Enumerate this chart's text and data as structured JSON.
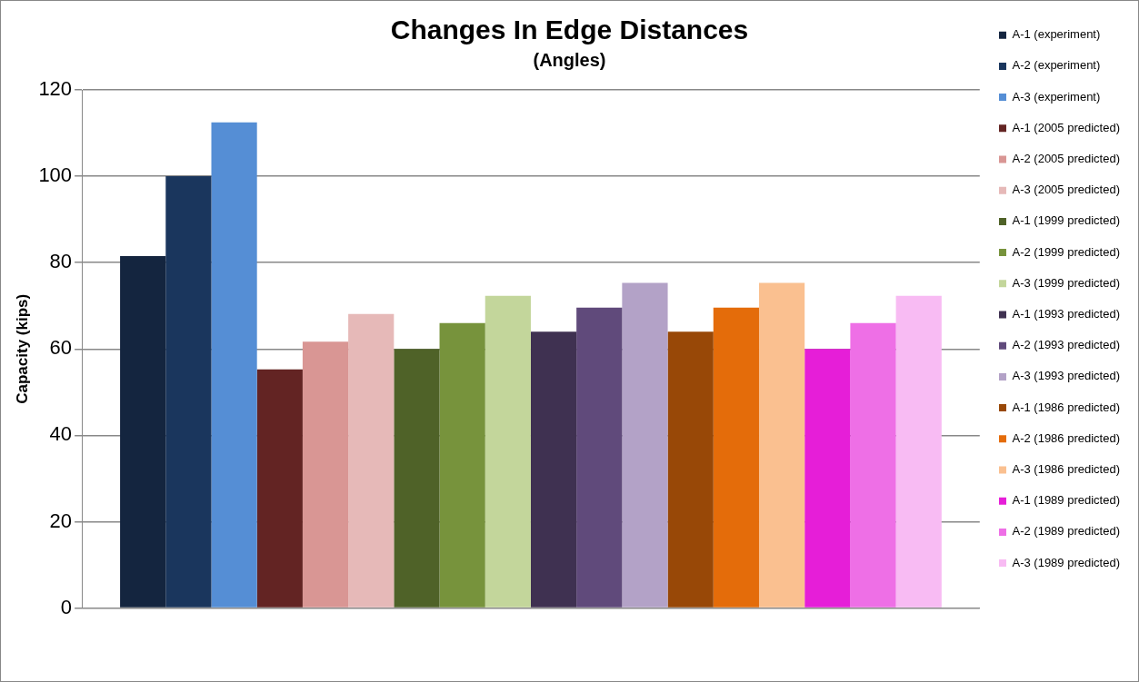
{
  "chart_data": {
    "type": "bar",
    "title": "Changes In Edge Distances",
    "subtitle": "(Angles)",
    "ylabel": "Capacity (kips)",
    "categories": [
      null
    ],
    "series": [
      {
        "name": "A-1 (experiment)",
        "color": "#14253f",
        "values": [
          81.5
        ]
      },
      {
        "name": "A-2 (experiment)",
        "color": "#1a365d",
        "values": [
          100
        ]
      },
      {
        "name": "A-3 (experiment)",
        "color": "#558ed5",
        "values": [
          112.5
        ]
      },
      {
        "name": "A-1 (2005 predicted)",
        "color": "#632423",
        "values": [
          55.3
        ]
      },
      {
        "name": "A-2 (2005 predicted)",
        "color": "#d99694",
        "values": [
          61.7
        ]
      },
      {
        "name": "A-3 (2005 predicted)",
        "color": "#e6b9b8",
        "values": [
          68.1
        ]
      },
      {
        "name": "A-1 (1999 predicted)",
        "color": "#4f6228",
        "values": [
          60
        ]
      },
      {
        "name": "A-2 (1999 predicted)",
        "color": "#77933c",
        "values": [
          66
        ]
      },
      {
        "name": "A-3 (1999 predicted)",
        "color": "#c3d69b",
        "values": [
          72.3
        ]
      },
      {
        "name": "A-1 (1993 predicted)",
        "color": "#3f3151",
        "values": [
          64
        ]
      },
      {
        "name": "A-2 (1993 predicted)",
        "color": "#604a7b",
        "values": [
          69.6
        ]
      },
      {
        "name": "A-3 (1993 predicted)",
        "color": "#b3a2c7",
        "values": [
          75.3
        ]
      },
      {
        "name": "A-1 (1986 predicted)",
        "color": "#984807",
        "values": [
          64
        ]
      },
      {
        "name": "A-2 (1986 predicted)",
        "color": "#e46c0a",
        "values": [
          69.6
        ]
      },
      {
        "name": "A-3 (1986 predicted)",
        "color": "#fac090",
        "values": [
          75.3
        ]
      },
      {
        "name": "A-1 (1989 predicted)",
        "color": "#e61ed8",
        "values": [
          60
        ]
      },
      {
        "name": "A-2 (1989 predicted)",
        "color": "#ee6fe6",
        "values": [
          66
        ]
      },
      {
        "name": "A-3 (1989 predicted)",
        "color": "#f8bbf3",
        "values": [
          72.3
        ]
      }
    ],
    "ylim": [
      0,
      120
    ],
    "yticks": [
      0,
      20,
      40,
      60,
      80,
      100,
      120
    ],
    "grid": "y",
    "legend": "right"
  }
}
